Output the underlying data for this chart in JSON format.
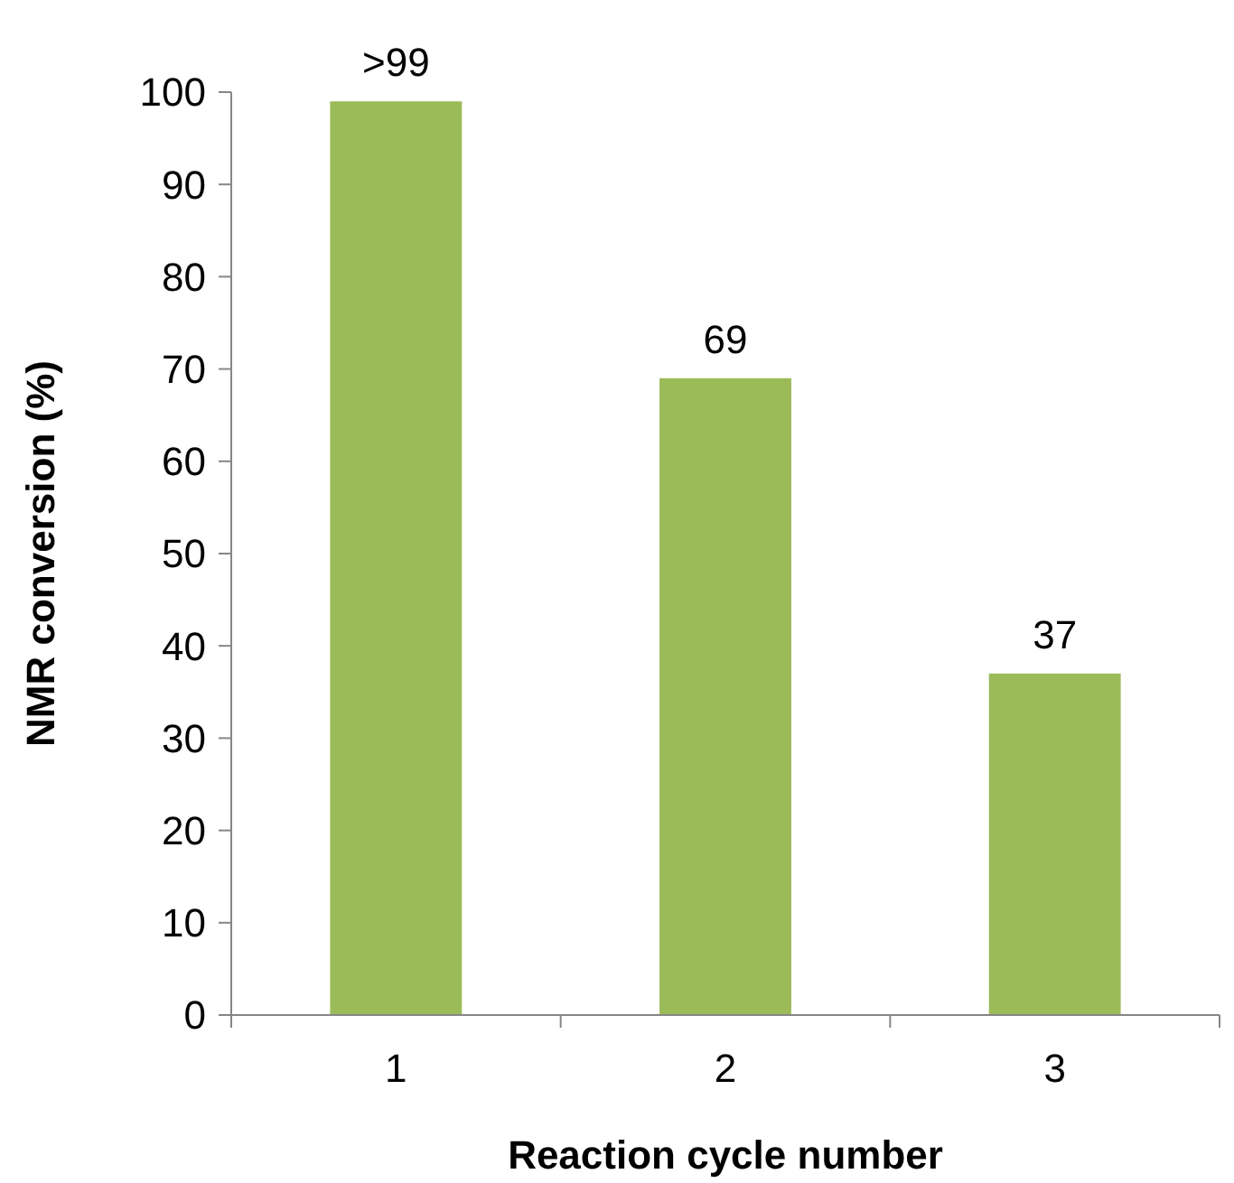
{
  "chart_data": {
    "type": "bar",
    "xlabel": "Reaction cycle number",
    "ylabel": "NMR conversion (%)",
    "categories": [
      "1",
      "2",
      "3"
    ],
    "values": [
      99,
      69,
      37
    ],
    "value_labels": [
      ">99",
      "69",
      "37"
    ],
    "color": "#9bbb59",
    "ylim": [
      0,
      100
    ],
    "yticks": [
      0,
      10,
      20,
      30,
      40,
      50,
      60,
      70,
      80,
      90,
      100
    ]
  }
}
